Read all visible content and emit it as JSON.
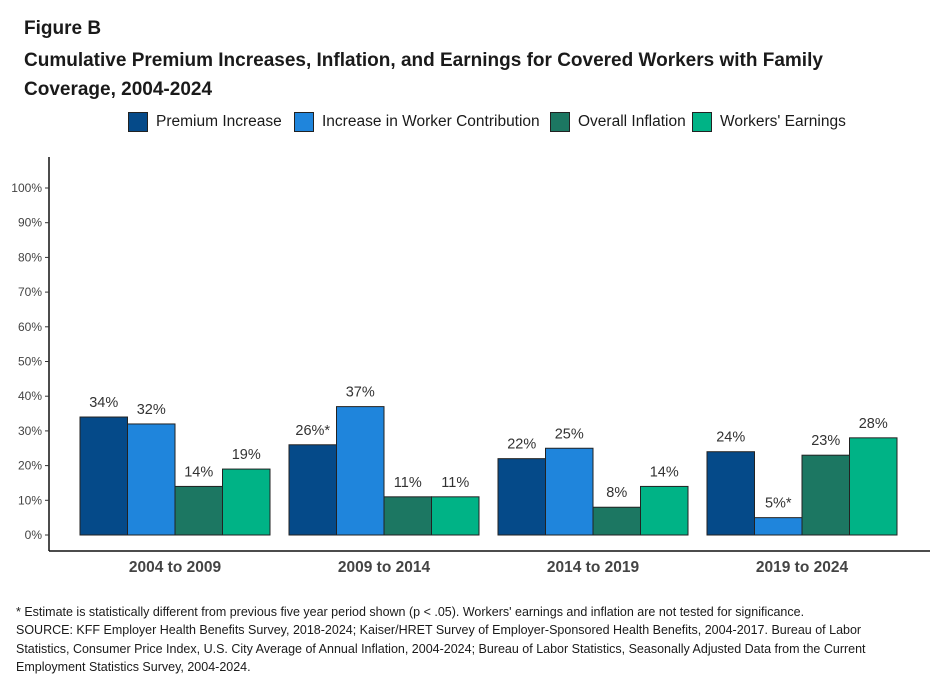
{
  "figure_label": "Figure B",
  "title": "Cumulative Premium Increases, Inflation, and Earnings for Covered Workers with Family Coverage, 2004-2024",
  "footnotes": [
    "* Estimate is statistically different from previous five year period shown (p < .05). Workers' earnings and inflation are not tested for significance.",
    "SOURCE: KFF Employer Health Benefits Survey, 2018-2024; Kaiser/HRET Survey of Employer-Sponsored Health Benefits, 2004-2017. Bureau of Labor Statistics, Consumer Price Index, U.S. City Average of Annual Inflation, 2004-2024; Bureau of Labor Statistics, Seasonally Adjusted Data from the Current Employment Statistics Survey, 2004-2024."
  ],
  "colors": {
    "premium_increase": "#054a89",
    "worker_contribution": "#1f85dc",
    "overall_inflation": "#1c7762",
    "workers_earnings": "#00b386"
  },
  "chart_data": {
    "type": "bar",
    "categories": [
      "2004 to 2009",
      "2009 to 2014",
      "2014 to 2019",
      "2019 to 2024"
    ],
    "series": [
      {
        "name": "Premium Increase",
        "color": "#054a89",
        "values": [
          34,
          26,
          22,
          24
        ],
        "labels": [
          "34%",
          "26%*",
          "22%",
          "24%"
        ]
      },
      {
        "name": "Increase in Worker Contribution",
        "color": "#1f85dc",
        "values": [
          32,
          37,
          25,
          5
        ],
        "labels": [
          "32%",
          "37%",
          "25%",
          "5%*"
        ]
      },
      {
        "name": "Overall Inflation",
        "color": "#1c7762",
        "values": [
          14,
          11,
          8,
          23
        ],
        "labels": [
          "14%",
          "11%",
          "8%",
          "23%"
        ]
      },
      {
        "name": "Workers' Earnings",
        "color": "#00b386",
        "values": [
          19,
          11,
          14,
          28
        ],
        "labels": [
          "19%",
          "11%",
          "14%",
          "28%"
        ]
      }
    ],
    "yticks": [
      "0%",
      "10%",
      "20%",
      "30%",
      "40%",
      "50%",
      "60%",
      "70%",
      "80%",
      "90%",
      "100%"
    ],
    "ylim": [
      0,
      100
    ],
    "legend_position": "top",
    "grid": false
  }
}
